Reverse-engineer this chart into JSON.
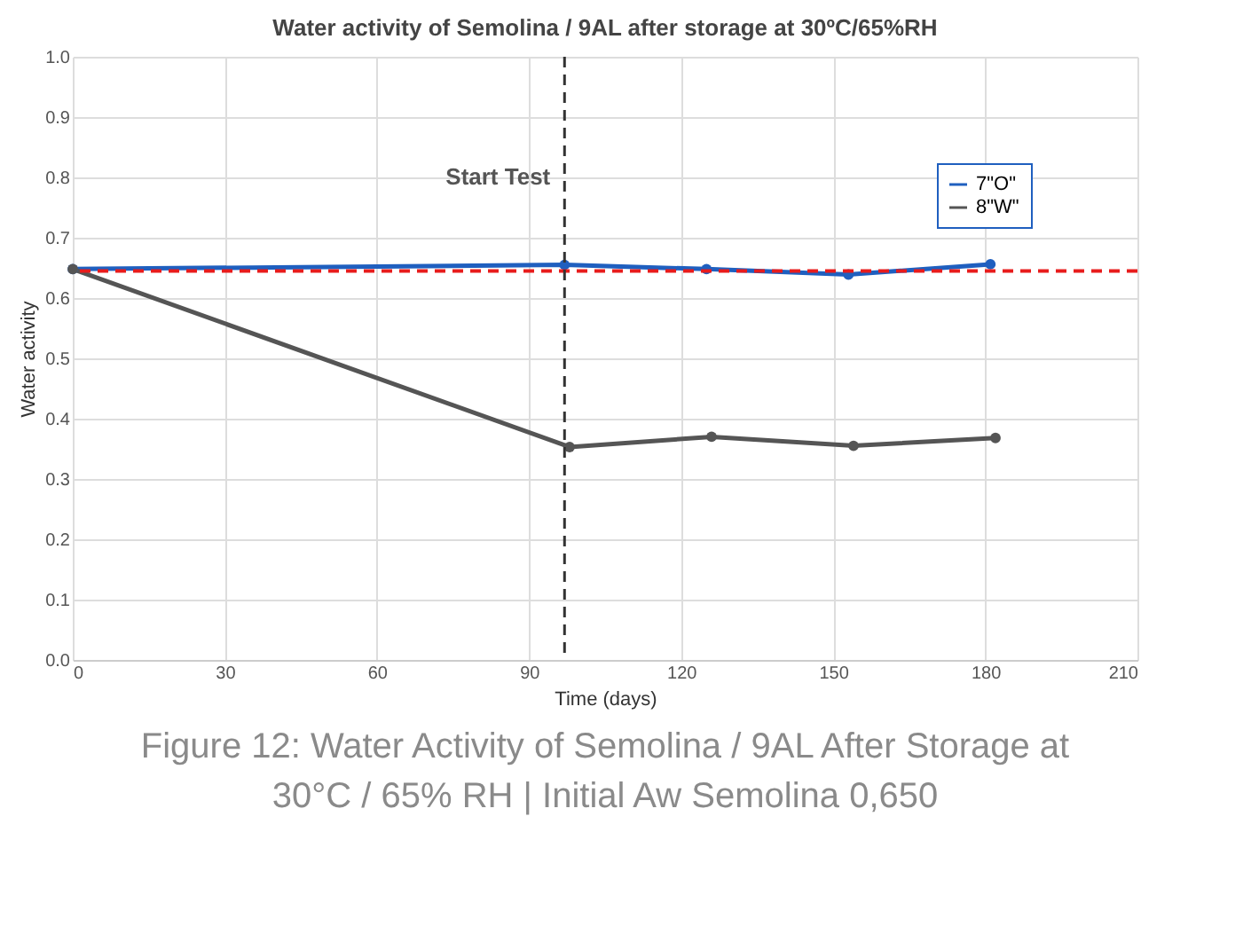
{
  "chart_data": {
    "type": "line",
    "title": "Water activity of Semolina / 9AL after storage at 30ºC/65%RH",
    "xlabel": "Time (days)",
    "ylabel": "Water activity",
    "xlim": [
      0,
      210
    ],
    "xticks": [
      0,
      30,
      60,
      90,
      120,
      150,
      180,
      210
    ],
    "ylim": [
      0,
      1
    ],
    "yticks": [
      {
        "value": 0,
        "label": "0.0"
      },
      0.1,
      0.2,
      0.3,
      0.4,
      0.5,
      0.6,
      0.7,
      0.8,
      0.9,
      {
        "value": 1,
        "label": "1.0"
      }
    ],
    "grid": true,
    "legend": "top right",
    "marker": "circle",
    "line_style": "solid",
    "series": [
      {
        "name": "7\"O\"",
        "color": "#1f5fbf",
        "x": [
          0,
          97,
          125,
          153,
          181
        ],
        "values": [
          0.648,
          0.655,
          0.648,
          0.639,
          0.656
        ]
      },
      {
        "name": "8\"W\"",
        "color": "#555555",
        "x": [
          0,
          98,
          126,
          154,
          182
        ],
        "values": [
          0.648,
          0.353,
          0.37,
          0.355,
          0.368
        ]
      }
    ],
    "ref_lines": [
      {
        "axis": "y",
        "value": 0.645,
        "label": null,
        "color": "#e81c1c",
        "line_style": "dashed"
      },
      {
        "axis": "x",
        "value": 97,
        "label": "Start Test",
        "color": "#333333",
        "line_style": "dashed"
      }
    ],
    "annotations": [
      "Figure 12: Water Activity of Semolina / 9AL After Storage at",
      "30°C / 65% RH   |  Initial Aw Semolina 0,650"
    ]
  }
}
